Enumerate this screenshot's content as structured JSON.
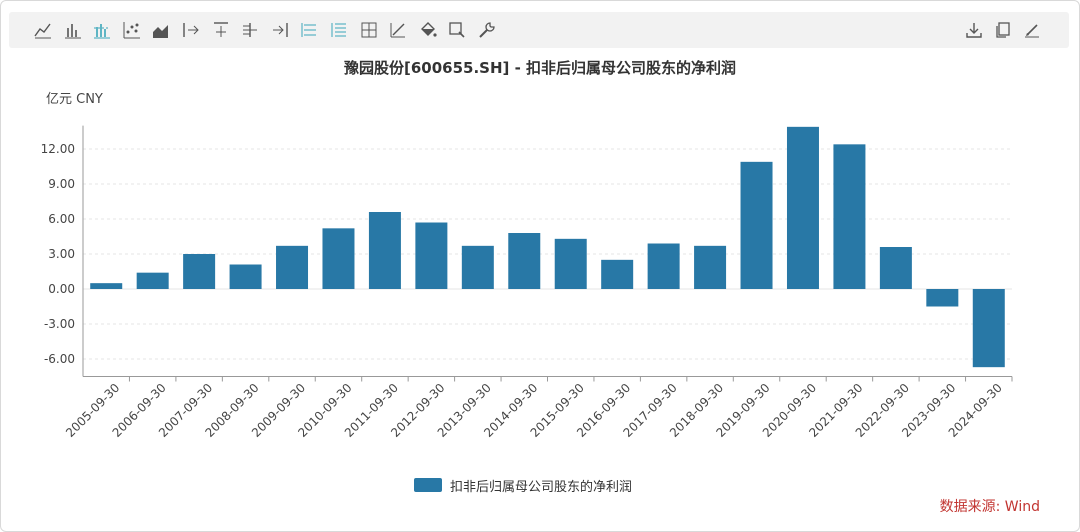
{
  "toolbar": {
    "left_tools": [
      "line-chart-icon",
      "bar-chart-icon",
      "grouped-bar-icon",
      "scatter-icon",
      "area-chart-icon",
      "axis-start-icon",
      "axis-top-icon",
      "axis-left-icon",
      "axis-end-icon",
      "horizontal-lines-icon",
      "list-lines-icon",
      "crosshair-icon",
      "trend-line-icon",
      "fill-color-icon",
      "zoom-icon",
      "settings-wrench-icon"
    ],
    "right_tools": [
      "download-icon",
      "copy-icon",
      "edit-icon"
    ]
  },
  "chart_data": {
    "type": "bar",
    "title": "豫园股份[600655.SH] - 扣非后归属母公司股东的净利润",
    "unit_label": "亿元  CNY",
    "categories": [
      "2005-09-30",
      "2006-09-30",
      "2007-09-30",
      "2008-09-30",
      "2009-09-30",
      "2010-09-30",
      "2011-09-30",
      "2012-09-30",
      "2013-09-30",
      "2014-09-30",
      "2015-09-30",
      "2016-09-30",
      "2017-09-30",
      "2018-09-30",
      "2019-09-30",
      "2020-09-30",
      "2021-09-30",
      "2022-09-30",
      "2023-09-30",
      "2024-09-30"
    ],
    "series": [
      {
        "name": "扣非后归属母公司股东的净利润",
        "color": "#2878a6",
        "values": [
          0.5,
          1.4,
          3.0,
          2.1,
          3.7,
          5.2,
          6.6,
          5.7,
          3.7,
          4.8,
          4.3,
          2.5,
          3.9,
          3.7,
          10.9,
          13.9,
          12.4,
          3.6,
          -1.5,
          -6.7
        ]
      }
    ],
    "y_ticks": [
      "12.00",
      "9.00",
      "6.00",
      "3.00",
      "0.00",
      "-3.00",
      "-6.00"
    ],
    "ylim": [
      -7.5,
      14
    ],
    "grid": true,
    "legend_position": "bottom-center"
  },
  "source": "数据来源: Wind"
}
